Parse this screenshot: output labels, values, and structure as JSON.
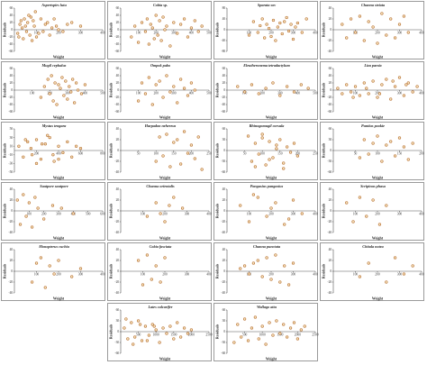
{
  "figure": {
    "xlabel": "Weight",
    "ylabel": "Residuals"
  },
  "chart_data": [
    {
      "type": "scatter",
      "title": "Aspertspies lutu",
      "xlabel": "Weight",
      "ylabel": "Residuals",
      "xlim": [
        0,
        400
      ],
      "ylim": [
        -60,
        60
      ],
      "xticks": [
        100,
        200,
        300,
        400
      ],
      "yticks": [
        -60,
        -40,
        -20,
        0,
        20,
        40,
        60
      ],
      "x": [
        15,
        20,
        25,
        30,
        35,
        40,
        45,
        50,
        55,
        60,
        65,
        70,
        75,
        80,
        85,
        90,
        95,
        100,
        110,
        120,
        130,
        140,
        150,
        160,
        170,
        180,
        190,
        200,
        220,
        240,
        260,
        300
      ],
      "y": [
        -10,
        -20,
        15,
        25,
        5,
        -25,
        30,
        10,
        -5,
        20,
        40,
        -15,
        35,
        -30,
        25,
        10,
        50,
        -20,
        -10,
        30,
        -5,
        15,
        20,
        -15,
        5,
        30,
        10,
        0,
        -5,
        15,
        20,
        10
      ]
    },
    {
      "type": "scatter",
      "title": "Cobia sp.",
      "xlabel": "Weight",
      "ylabel": "Residuals",
      "xlim": [
        0,
        500
      ],
      "ylim": [
        -60,
        60
      ],
      "xticks": [
        100,
        200,
        300,
        400,
        500
      ],
      "yticks": [
        -60,
        -40,
        -20,
        0,
        20,
        40,
        60
      ],
      "x": [
        60,
        80,
        100,
        120,
        140,
        150,
        160,
        170,
        180,
        190,
        200,
        210,
        220,
        230,
        240,
        250,
        260,
        280,
        300,
        320,
        340,
        360,
        380,
        400,
        420,
        440,
        460
      ],
      "y": [
        -20,
        10,
        -35,
        20,
        -5,
        30,
        -40,
        15,
        5,
        -25,
        40,
        -15,
        25,
        -30,
        35,
        0,
        10,
        -45,
        20,
        -10,
        15,
        30,
        -20,
        5,
        25,
        -5,
        10
      ]
    },
    {
      "type": "scatter",
      "title": "Sparata sov",
      "xlabel": "Weight",
      "ylabel": "Residuals",
      "xlim": [
        0,
        400
      ],
      "ylim": [
        -80,
        80
      ],
      "xticks": [
        100,
        200,
        300,
        400
      ],
      "yticks": [
        -80,
        -40,
        0,
        40,
        80
      ],
      "x": [
        100,
        120,
        140,
        150,
        160,
        170,
        180,
        190,
        200,
        210,
        220,
        230,
        240,
        250,
        260,
        270,
        280,
        290,
        300,
        310,
        320,
        340,
        360
      ],
      "y": [
        -20,
        30,
        -10,
        15,
        40,
        -30,
        20,
        5,
        -25,
        35,
        -40,
        10,
        25,
        -15,
        30,
        45,
        -5,
        20,
        -35,
        10,
        25,
        -10,
        40
      ]
    },
    {
      "type": "scatter",
      "title": "Channa striata",
      "xlabel": "Weight",
      "ylabel": "Residuals",
      "xlim": [
        0,
        400
      ],
      "ylim": [
        -40,
        40
      ],
      "xticks": [
        100,
        200,
        300,
        400
      ],
      "yticks": [
        -40,
        -20,
        0,
        20,
        40
      ],
      "x": [
        40,
        60,
        80,
        100,
        120,
        140,
        160,
        180,
        200,
        220,
        240,
        260,
        280,
        300,
        320,
        340
      ],
      "y": [
        10,
        -15,
        20,
        -5,
        25,
        -20,
        15,
        5,
        -25,
        30,
        -10,
        20,
        -15,
        10,
        25,
        -5
      ]
    },
    {
      "type": "scatter",
      "title": "Mugil cephalus",
      "xlabel": "Weight",
      "ylabel": "Residuals",
      "xlim": [
        0,
        500
      ],
      "ylim": [
        -60,
        60
      ],
      "xticks": [
        100,
        200,
        300,
        400,
        500
      ],
      "yticks": [
        -60,
        -40,
        -20,
        0,
        20,
        40,
        60
      ],
      "x": [
        150,
        170,
        190,
        200,
        210,
        220,
        230,
        240,
        250,
        260,
        270,
        280,
        290,
        300,
        310,
        320,
        330,
        340,
        350,
        360,
        380,
        400
      ],
      "y": [
        -20,
        10,
        30,
        -10,
        40,
        -30,
        20,
        -40,
        15,
        5,
        35,
        -15,
        25,
        -25,
        10,
        -5,
        30,
        -35,
        20,
        0,
        -10,
        15
      ]
    },
    {
      "type": "scatter",
      "title": "Ompok pabo",
      "xlabel": "Weight",
      "ylabel": "Residuals",
      "xlim": [
        0,
        500
      ],
      "ylim": [
        -60,
        60
      ],
      "xticks": [
        100,
        200,
        300,
        400,
        500
      ],
      "yticks": [
        -60,
        -40,
        -20,
        0,
        20,
        40,
        60
      ],
      "x": [
        100,
        120,
        140,
        160,
        180,
        200,
        220,
        240,
        260,
        280,
        300,
        320,
        340,
        360,
        380,
        400,
        420
      ],
      "y": [
        -30,
        20,
        -10,
        35,
        -40,
        15,
        25,
        -20,
        40,
        -5,
        10,
        -35,
        30,
        5,
        -15,
        20,
        0
      ]
    },
    {
      "type": "scatter",
      "title": "Eleutheronema tetradactylum",
      "xlabel": "Weight",
      "ylabel": "Residuals",
      "xlim": [
        0,
        500
      ],
      "ylim": [
        -60,
        60
      ],
      "xticks": [
        100,
        200,
        300,
        400,
        500
      ],
      "yticks": [
        -60,
        -40,
        -20,
        0,
        20,
        40,
        60
      ],
      "x": [
        60,
        100,
        140,
        180,
        220,
        260,
        300,
        340,
        380,
        420,
        460
      ],
      "y": [
        10,
        -5,
        15,
        -10,
        5,
        20,
        -15,
        10,
        -5,
        15,
        5
      ]
    },
    {
      "type": "scatter",
      "title": "Liza parsia",
      "xlabel": "Weight",
      "ylabel": "Residuals",
      "xlim": [
        0,
        400
      ],
      "ylim": [
        -60,
        60
      ],
      "xticks": [
        100,
        200,
        300,
        400
      ],
      "yticks": [
        -60,
        -40,
        -20,
        0,
        20,
        40,
        60
      ],
      "x": [
        20,
        40,
        60,
        80,
        100,
        120,
        140,
        160,
        180,
        200,
        220,
        240,
        260,
        280,
        300,
        320,
        340,
        360,
        380,
        150,
        210,
        270,
        330,
        90
      ],
      "y": [
        5,
        -10,
        15,
        -5,
        10,
        -15,
        20,
        -10,
        25,
        -20,
        15,
        30,
        -25,
        10,
        35,
        -15,
        20,
        -5,
        10,
        5,
        -10,
        25,
        15,
        -20
      ]
    },
    {
      "type": "scatter",
      "title": "Mystus tengara",
      "xlabel": "Weight",
      "ylabel": "Residuals",
      "xlim": [
        0,
        800
      ],
      "ylim": [
        -50,
        50
      ],
      "xticks": [
        200,
        400,
        600,
        800
      ],
      "yticks": [
        -50,
        -30,
        -10,
        10,
        30,
        50
      ],
      "x": [
        40,
        80,
        120,
        160,
        200,
        240,
        280,
        320,
        360,
        400,
        440,
        480,
        520,
        560,
        600,
        200,
        300,
        100,
        400,
        250,
        350,
        150
      ],
      "y": [
        10,
        -15,
        20,
        -10,
        25,
        -20,
        15,
        30,
        -25,
        10,
        -5,
        20,
        -15,
        10,
        5,
        -30,
        35,
        25,
        -20,
        15,
        -10,
        5
      ]
    },
    {
      "type": "scatter",
      "title": "Harpadon nehereus",
      "xlabel": "Weight",
      "ylabel": "Residuals",
      "xlim": [
        0,
        250
      ],
      "ylim": [
        -40,
        40
      ],
      "xticks": [
        50,
        100,
        150,
        200,
        250
      ],
      "yticks": [
        -40,
        -20,
        0,
        20,
        40
      ],
      "x": [
        100,
        110,
        120,
        130,
        140,
        150,
        160,
        170,
        180,
        190,
        200,
        210,
        220,
        230
      ],
      "y": [
        -20,
        25,
        -10,
        30,
        -30,
        15,
        20,
        -25,
        35,
        -5,
        10,
        -15,
        25,
        -35
      ]
    },
    {
      "type": "scatter",
      "title": "Rhinogomugil corsula",
      "xlabel": "Weight",
      "ylabel": "Residuals",
      "xlim": [
        0,
        250
      ],
      "ylim": [
        -60,
        60
      ],
      "xticks": [
        50,
        100,
        150,
        200,
        250
      ],
      "yticks": [
        -60,
        -30,
        0,
        30,
        60
      ],
      "x": [
        60,
        70,
        80,
        90,
        100,
        110,
        120,
        130,
        140,
        150,
        160,
        170,
        180,
        190,
        200,
        80,
        100,
        120,
        140,
        160
      ],
      "y": [
        40,
        -30,
        20,
        -10,
        35,
        -40,
        25,
        -20,
        15,
        30,
        -35,
        10,
        -5,
        20,
        -15,
        -45,
        45,
        -25,
        5,
        -50
      ]
    },
    {
      "type": "scatter",
      "title": "Puntius pookie",
      "xlabel": "Weight",
      "ylabel": "Residuals",
      "xlim": [
        0,
        200
      ],
      "ylim": [
        -60,
        60
      ],
      "xticks": [
        50,
        100,
        150,
        200
      ],
      "yticks": [
        -60,
        -30,
        0,
        30,
        60
      ],
      "x": [
        60,
        70,
        80,
        90,
        100,
        110,
        120,
        130,
        140,
        150,
        160,
        170,
        180
      ],
      "y": [
        -20,
        30,
        -10,
        20,
        40,
        -30,
        15,
        25,
        -15,
        35,
        10,
        -25,
        20
      ]
    },
    {
      "type": "scatter",
      "title": "Sautpore sautpore",
      "xlabel": "Weight",
      "ylabel": "Residuals",
      "xlim": [
        0,
        600
      ],
      "ylim": [
        -40,
        40
      ],
      "xticks": [
        100,
        200,
        300,
        400,
        500,
        600
      ],
      "yticks": [
        -40,
        -20,
        0,
        20,
        40
      ],
      "x": [
        20,
        40,
        60,
        80,
        100,
        120,
        140,
        160,
        200,
        260,
        320,
        400
      ],
      "y": [
        20,
        -25,
        30,
        -10,
        15,
        -30,
        25,
        5,
        -15,
        10,
        5,
        -5
      ]
    },
    {
      "type": "scatter",
      "title": "Channa orientalis",
      "xlabel": "Weight",
      "ylabel": "Residuals",
      "xlim": [
        0,
        400
      ],
      "ylim": [
        -40,
        40
      ],
      "xticks": [
        100,
        200,
        300,
        400
      ],
      "yticks": [
        -40,
        -20,
        0,
        20,
        40
      ],
      "x": [
        120,
        160,
        200,
        240,
        280,
        180,
        220
      ],
      "y": [
        -10,
        15,
        -20,
        25,
        5,
        -5,
        10
      ]
    },
    {
      "type": "scatter",
      "title": "Pangasius pangasius",
      "xlabel": "Weight",
      "ylabel": "Residuals",
      "xlim": [
        0,
        400
      ],
      "ylim": [
        -40,
        40
      ],
      "xticks": [
        100,
        200,
        300,
        400
      ],
      "yticks": [
        -40,
        -20,
        0,
        20,
        40
      ],
      "x": [
        60,
        100,
        140,
        180,
        220,
        260,
        300,
        340,
        120,
        200,
        280
      ],
      "y": [
        10,
        -20,
        25,
        -10,
        15,
        -25,
        20,
        -5,
        30,
        5,
        -15
      ]
    },
    {
      "type": "scatter",
      "title": "Scripinus phasa",
      "xlabel": "Weight",
      "ylabel": "Residuals",
      "xlim": [
        0,
        400
      ],
      "ylim": [
        -40,
        40
      ],
      "xticks": [
        100,
        200,
        300,
        400
      ],
      "yticks": [
        -40,
        -20,
        0,
        20,
        40
      ],
      "x": [
        60,
        90,
        120,
        150,
        180,
        210,
        240
      ],
      "y": [
        15,
        -20,
        25,
        -10,
        20,
        -25,
        10
      ]
    },
    {
      "type": "scatter",
      "title": "Monopterus cuchia",
      "xlabel": "Weight",
      "ylabel": "Residuals",
      "xlim": [
        0,
        400
      ],
      "ylim": [
        -40,
        40
      ],
      "xticks": [
        100,
        200,
        300,
        400
      ],
      "yticks": [
        -40,
        -20,
        0,
        20,
        40
      ],
      "x": [
        80,
        100,
        120,
        140,
        160,
        180,
        200,
        260,
        300
      ],
      "y": [
        -20,
        15,
        25,
        -30,
        10,
        -5,
        20,
        -10,
        5
      ]
    },
    {
      "type": "scatter",
      "title": "Cobia fasciata",
      "xlabel": "Weight",
      "ylabel": "Residuals",
      "xlim": [
        0,
        400
      ],
      "ylim": [
        -40,
        40
      ],
      "xticks": [
        100,
        200,
        300,
        400
      ],
      "yticks": [
        -40,
        -20,
        0,
        20,
        40
      ],
      "x": [
        80,
        100,
        120,
        140,
        160,
        180,
        200
      ],
      "y": [
        20,
        -25,
        30,
        -15,
        10,
        -20,
        25
      ]
    },
    {
      "type": "scatter",
      "title": "Channa punctata",
      "xlabel": "Weight",
      "ylabel": "Residuals",
      "xlim": [
        0,
        400
      ],
      "ylim": [
        -40,
        40
      ],
      "xticks": [
        100,
        200,
        300,
        400
      ],
      "yticks": [
        -40,
        -20,
        0,
        20,
        40
      ],
      "x": [
        60,
        80,
        100,
        120,
        140,
        160,
        180,
        200,
        220,
        240,
        260,
        280,
        300
      ],
      "y": [
        5,
        10,
        -5,
        15,
        20,
        -10,
        25,
        -15,
        30,
        -20,
        10,
        -25,
        15
      ]
    },
    {
      "type": "scatter",
      "title": "Chitala notea",
      "xlabel": "Weight",
      "ylabel": "Residuals",
      "xlim": [
        0,
        400
      ],
      "ylim": [
        -40,
        40
      ],
      "xticks": [
        100,
        200,
        300,
        400
      ],
      "yticks": [
        -40,
        -20,
        0,
        20,
        40
      ],
      "x": [
        120,
        160,
        240,
        280,
        320,
        360
      ],
      "y": [
        -10,
        15,
        -20,
        25,
        -5,
        10
      ]
    },
    {
      "type": "scatter",
      "title": "Lates calcarifer",
      "xlabel": "Weight",
      "ylabel": "Residuals",
      "xlim": [
        0,
        2500
      ],
      "ylim": [
        -60,
        60
      ],
      "xticks": [
        500,
        1000,
        1500,
        2000,
        2500
      ],
      "yticks": [
        -60,
        -30,
        0,
        30,
        60
      ],
      "x": [
        100,
        200,
        300,
        400,
        500,
        600,
        700,
        800,
        900,
        1000,
        1100,
        1200,
        1300,
        1400,
        1500,
        1600,
        1700,
        1800,
        1900,
        2000,
        150,
        350,
        550,
        750,
        950
      ],
      "y": [
        10,
        -20,
        25,
        -15,
        30,
        -25,
        15,
        -10,
        20,
        5,
        -30,
        10,
        -5,
        15,
        -20,
        25,
        -15,
        10,
        -5,
        5,
        35,
        -35,
        20,
        -25,
        15
      ]
    },
    {
      "type": "scatter",
      "title": "Wallago attu",
      "xlabel": "Weight",
      "ylabel": "Residuals",
      "xlim": [
        0,
        2500
      ],
      "ylim": [
        -60,
        60
      ],
      "xticks": [
        500,
        1000,
        1500,
        2000,
        2500
      ],
      "yticks": [
        -60,
        -30,
        0,
        30,
        60
      ],
      "x": [
        200,
        300,
        400,
        500,
        600,
        700,
        800,
        900,
        1000,
        1100,
        1200,
        1300,
        1400,
        1500,
        1600,
        1700,
        1800,
        1900,
        2000,
        2100,
        2200
      ],
      "y": [
        -30,
        20,
        -15,
        35,
        -25,
        10,
        40,
        -20,
        15,
        -35,
        25,
        -10,
        30,
        -5,
        20,
        -15,
        10,
        25,
        -20,
        5,
        15
      ]
    }
  ]
}
